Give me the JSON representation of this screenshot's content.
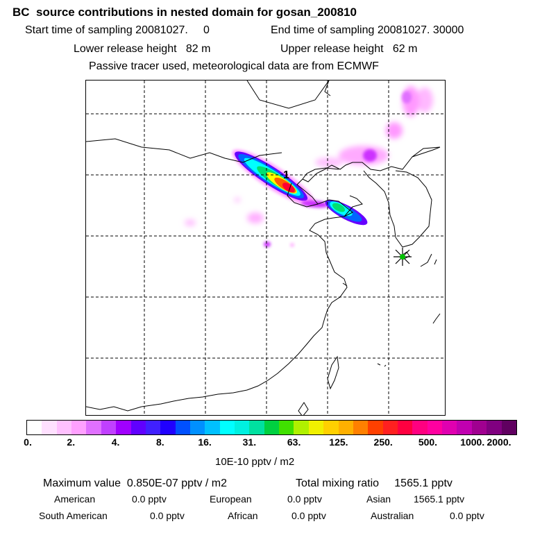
{
  "header": {
    "title": "BC  source contributions in nested domain for gosan_200810",
    "start_label": "Start time of sampling 20081027.     0",
    "end_label": "End time of sampling 20081027. 30000",
    "lower_label": "Lower release height   82 m",
    "upper_label": "Upper release height   62 m",
    "tracer_note": "Passive tracer used, meteorological data are from ECMWF"
  },
  "map": {
    "release_marker": "1",
    "station_marker": "star-icon",
    "colors": {
      "low": "#ff99ff",
      "mid": "#00ffff",
      "mid2": "#00e070",
      "hi1": "#ffff00",
      "hi2": "#ff6000",
      "max": "#ff0033",
      "purple": "#6600ff",
      "blue": "#0066ff",
      "star": "#00c000"
    }
  },
  "colorbar": {
    "ticks": [
      "0.",
      "2.",
      "4.",
      "8.",
      "16.",
      "31.",
      "63.",
      "125.",
      "250.",
      "500.",
      "1000.",
      "2000."
    ],
    "colors": [
      "#ffffff",
      "#ffe0ff",
      "#ffc0ff",
      "#ffa0ff",
      "#e070ff",
      "#c040ff",
      "#a000ff",
      "#6000ff",
      "#4020ff",
      "#2000ff",
      "#0050ff",
      "#0090ff",
      "#00c0ff",
      "#00ffff",
      "#00f0e0",
      "#00e0a0",
      "#00d040",
      "#40e000",
      "#b0f000",
      "#f0f000",
      "#ffd000",
      "#ffb000",
      "#ff8000",
      "#ff4000",
      "#ff2020",
      "#ff0040",
      "#ff0080",
      "#ff00a0",
      "#e000b0",
      "#c000b0",
      "#a00090",
      "#800080",
      "#600060"
    ],
    "units": "10E-10 pptv / m2"
  },
  "footer": {
    "max_label": "Maximum value  0.850E-07 pptv / m2",
    "mix_label": "Total mixing ratio     1565.1 pptv",
    "american": "American",
    "american_val": "0.0 pptv",
    "european": "European",
    "european_val": "0.0 pptv",
    "asian": "Asian",
    "asian_val": "1565.1 pptv",
    "south_american": "South American",
    "south_american_val": "0.0 pptv",
    "african": "African",
    "african_val": "0.0 pptv",
    "australian": "Australian",
    "australian_val": "0.0 pptv"
  }
}
